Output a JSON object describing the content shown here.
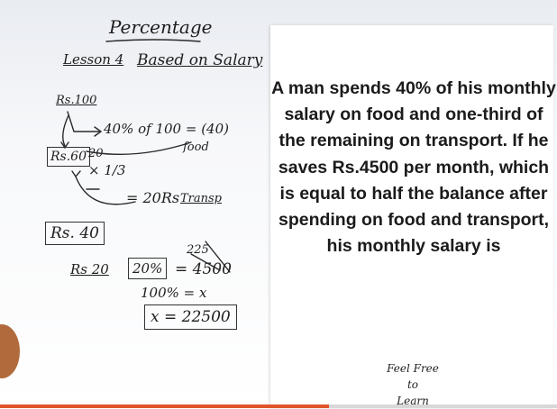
{
  "board": {
    "title": "Percentage",
    "lesson": "Lesson 4",
    "topic": "Based on Salary",
    "notes": [
      "Rs.100",
      "40% of 100 = (40)",
      "food",
      "Rs.60",
      "20",
      "× 1/3",
      "= 20Rs",
      "Transp",
      "Rs. 40",
      "Rs 20",
      "20%",
      "= 4500",
      "225",
      "100% = x",
      "x = 22500"
    ]
  },
  "question": {
    "text": "A man spends 40% of his monthly salary on food and one-third of the remaining on transport. If he saves Rs.4500 per month, which is equal to half the balance after spending on food and transport, his monthly salary is"
  },
  "logo": {
    "line1": "Feel Free",
    "line2": "to",
    "line3": "Learn"
  },
  "video": {
    "progress": 0.59
  },
  "colors": {
    "ink": "#1e1e1e",
    "progress": "#e0552b",
    "panel": "#ffffff"
  }
}
